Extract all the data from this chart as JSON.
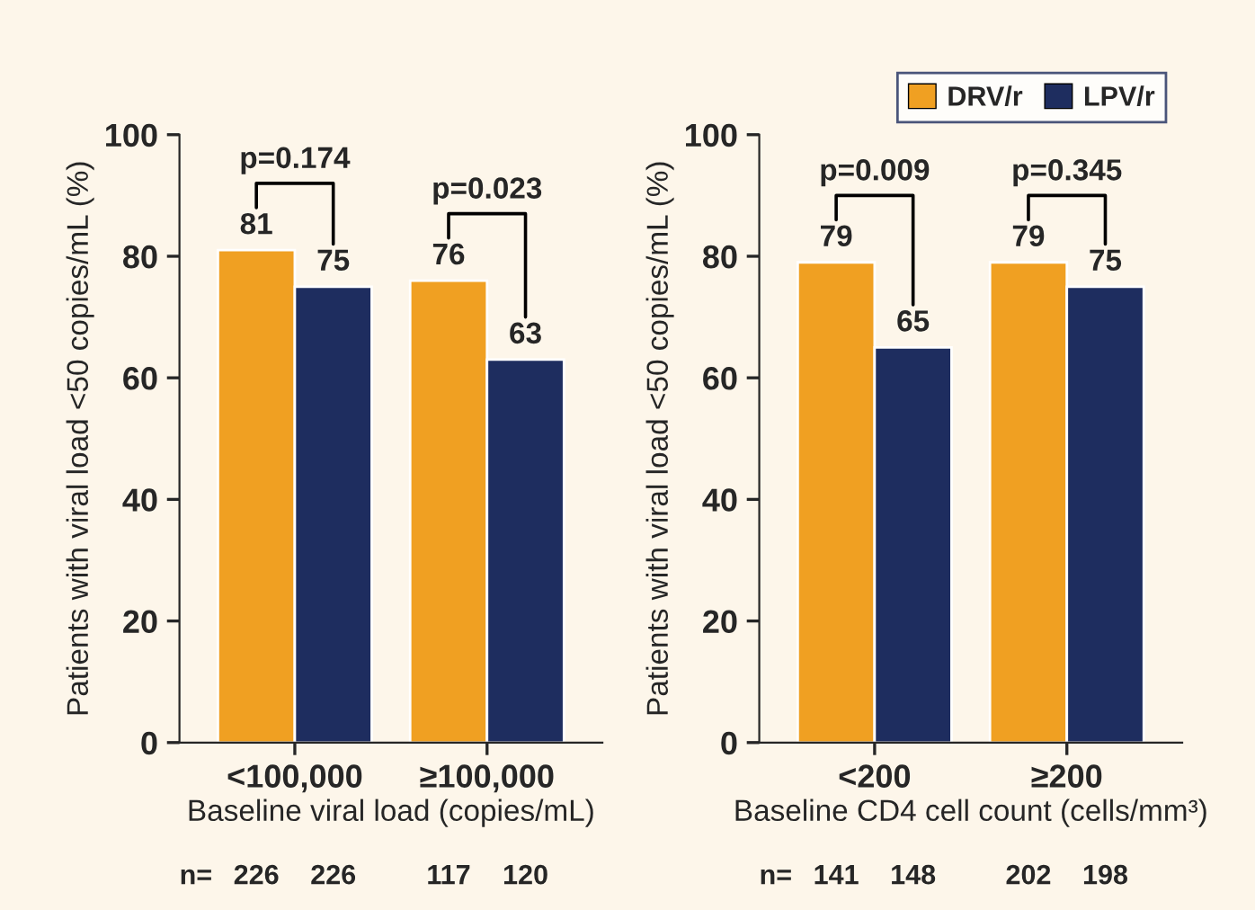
{
  "chart_data": [
    {
      "type": "bar",
      "categories": [
        "<100,000",
        "≥100,000"
      ],
      "xlabel": "Baseline viral load (copies/mL)",
      "ylabel": "Patients with viral load <50 copies/mL (%)",
      "ylim": [
        0,
        100
      ],
      "yticks": [
        0,
        20,
        40,
        60,
        80,
        100
      ],
      "grid": false,
      "legend": "top right",
      "data_labels": true,
      "series": [
        {
          "name": "DRV/r",
          "color": "#f0a022",
          "values": [
            81,
            76
          ]
        },
        {
          "name": "LPV/r",
          "color": "#1e2d5f",
          "values": [
            75,
            63
          ]
        }
      ],
      "annotations": [
        "p=0.174",
        "p=0.023",
        "n=",
        "226",
        "226",
        "117",
        "120"
      ]
    },
    {
      "type": "bar",
      "categories": [
        "<200",
        "≥200"
      ],
      "xlabel": "Baseline CD4 cell count (cells/mm³)",
      "ylabel": "Patients with viral load <50 copies/mL (%)",
      "ylim": [
        0,
        100
      ],
      "yticks": [
        0,
        20,
        40,
        60,
        80,
        100
      ],
      "grid": false,
      "legend": false,
      "data_labels": true,
      "series": [
        {
          "color": "#f0a022",
          "values": [
            79,
            79
          ]
        },
        {
          "color": "#1e2d5f",
          "values": [
            65,
            75
          ]
        }
      ],
      "annotations": [
        "p=0.009",
        "p=0.345",
        "n=",
        "141",
        "148",
        "202",
        "198"
      ]
    }
  ]
}
